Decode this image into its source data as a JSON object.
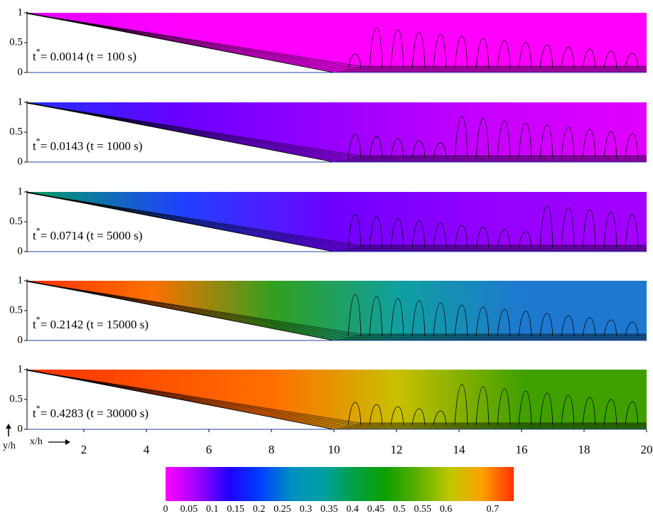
{
  "chart_data": {
    "type": "contour",
    "xlabel": "x/h",
    "ylabel": "y/h",
    "xlim": [
      0,
      20
    ],
    "xticks": [
      2,
      4,
      6,
      8,
      10,
      12,
      14,
      16,
      18,
      20
    ],
    "ylim": [
      0,
      1
    ],
    "yticks": [
      0,
      0.5,
      1
    ],
    "label_symbol": "t",
    "label_superscript": "*",
    "panels": [
      {
        "label": "= 0.0014 (t = 100 s)",
        "colors": [
          "#e000ff",
          "#ff00ff",
          "#ff00ff",
          "#ff00ff",
          "#ff00ff"
        ]
      },
      {
        "label": "= 0.0143 (t = 1000 s)",
        "colors": [
          "#2030ff",
          "#6a00ff",
          "#9a00ff",
          "#c800ff",
          "#e000ff"
        ]
      },
      {
        "label": "= 0.0714 (t = 5000 s)",
        "colors": [
          "#00a060",
          "#2040ff",
          "#7000ff",
          "#9400ff",
          "#a400ff"
        ]
      },
      {
        "label": "= 0.2142 (t = 15000 s)",
        "colors": [
          "#ff3000",
          "#ff7000",
          "#30a020",
          "#10a0a0",
          "#1e78d0",
          "#1e78d0"
        ]
      },
      {
        "label": "= 0.4283 (t = 30000 s)",
        "colors": [
          "#ff3000",
          "#ff5000",
          "#ff7000",
          "#c8c000",
          "#40a000",
          "#40a000"
        ]
      }
    ],
    "colorbar": {
      "clim": [
        0,
        0.745
      ],
      "ticks": [
        0,
        0.05,
        0.1,
        0.15,
        0.2,
        0.25,
        0.3,
        0.35,
        0.4,
        0.45,
        0.5,
        0.55,
        0.6,
        0.7
      ],
      "colors": [
        "#ff00ff",
        "#a000ff",
        "#2000ff",
        "#0040ff",
        "#0090c0",
        "#00a0a0",
        "#00a040",
        "#10a000",
        "#60b000",
        "#c0c800",
        "#ffa000",
        "#ff3000"
      ]
    }
  }
}
